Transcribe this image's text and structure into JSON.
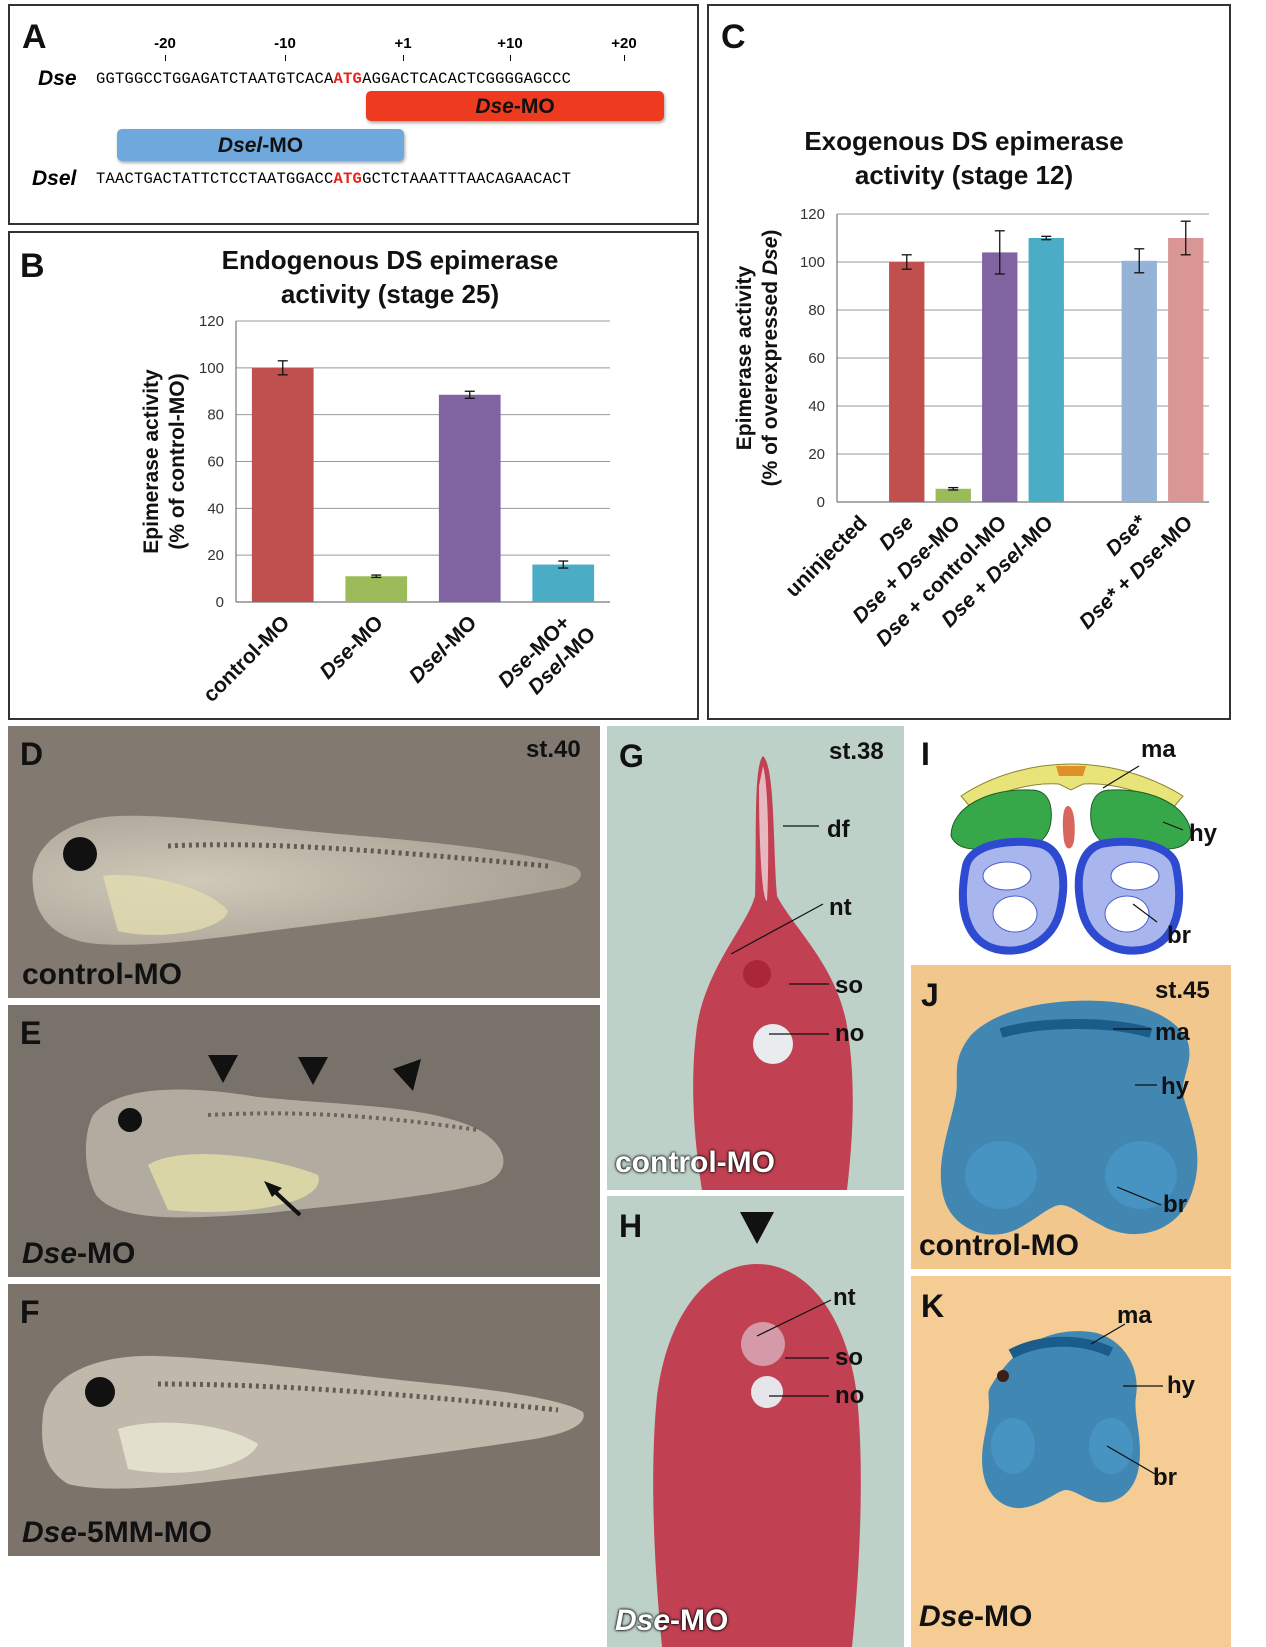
{
  "panelA": {
    "label": "A",
    "positions": [
      "-20",
      "-10",
      "+1",
      "+10",
      "+20"
    ],
    "dse": {
      "gene": "Dse",
      "seq_before": "GGTGGCCTGGAGATCTAATGTCACA",
      "atg": "ATG",
      "seq_after": "AGGACTCACACTCGGGGAGCCC"
    },
    "dse_mo": {
      "gene": "Dse",
      "suffix": "-MO"
    },
    "dsel_mo": {
      "gene": "Dsel",
      "suffix": "-MO"
    },
    "dsel": {
      "gene": "Dsel",
      "seq_before": "TAACTGACTATTCTCCTAATGGACC",
      "atg": "ATG",
      "seq_after": "GCTCTAAATTTAACAGAACACT"
    },
    "colors": {
      "atg": "#e8221b",
      "dse_mo": "#ee3a1e",
      "dsel_mo": "#6ea8dc"
    }
  },
  "panelB": {
    "label": "B"
  },
  "panelC": {
    "label": "C"
  },
  "chart_data": [
    {
      "type": "bar",
      "title": "Endogenous DS epimerase activity (stage 25)",
      "ylabel": "Epimerase activity (% of control-MO)",
      "categories": [
        "control-MO",
        "Dse-MO",
        "Dsel-MO",
        "Dse-MO+ Dsel-MO"
      ],
      "values": [
        100,
        11,
        88.5,
        16
      ],
      "errors": [
        3,
        0.5,
        1.5,
        1.5
      ],
      "colors": [
        "#c0504d",
        "#9bbb59",
        "#8064a2",
        "#4bacc6"
      ],
      "ylim": [
        0,
        120
      ],
      "yticks": [
        0,
        20,
        40,
        60,
        80,
        100,
        120
      ],
      "grid": true
    },
    {
      "type": "bar",
      "title": "Exogenous DS epimerase activity (stage 12)",
      "ylabel": "Epimerase activity (% of overexpressed Dse)",
      "categories": [
        "uninjected",
        "Dse",
        "Dse + Dse-MO",
        "Dse + control-MO",
        "Dse + Dsel-MO",
        "",
        "Dse*",
        "Dse* + Dse-MO"
      ],
      "values": [
        0,
        100,
        5.5,
        104,
        110,
        null,
        100.5,
        110
      ],
      "errors": [
        0,
        3,
        0.5,
        9,
        0.7,
        null,
        5,
        7
      ],
      "colors": [
        "#c0504d",
        "#c0504d",
        "#9bbb59",
        "#8064a2",
        "#4bacc6",
        "#ffffff",
        "#95b3d7",
        "#d99694"
      ],
      "ylim": [
        0,
        120
      ],
      "yticks": [
        0,
        20,
        40,
        60,
        80,
        100,
        120
      ],
      "grid": true
    }
  ],
  "photos": {
    "D": {
      "label": "D",
      "stage": "st.40",
      "caption": "control-MO"
    },
    "E": {
      "label": "E",
      "caption_gene": "Dse",
      "caption_suffix": "-MO"
    },
    "F": {
      "label": "F",
      "caption_gene": "Dse",
      "caption_suffix": "-5MM-MO"
    },
    "G": {
      "label": "G",
      "stage": "st.38",
      "caption": "control-MO",
      "annotations": [
        "df",
        "nt",
        "so",
        "no"
      ]
    },
    "H": {
      "label": "H",
      "caption_gene": "Dse",
      "caption_suffix": "-MO",
      "annotations": [
        "nt",
        "so",
        "no"
      ]
    },
    "I": {
      "label": "I",
      "annotations": [
        "ma",
        "hy",
        "br"
      ]
    },
    "J": {
      "label": "J",
      "stage": "st.45",
      "caption": "control-MO",
      "annotations": [
        "ma",
        "hy",
        "br"
      ]
    },
    "K": {
      "label": "K",
      "caption_gene": "Dse",
      "caption_suffix": "-MO",
      "annotations": [
        "ma",
        "hy",
        "br"
      ]
    }
  }
}
